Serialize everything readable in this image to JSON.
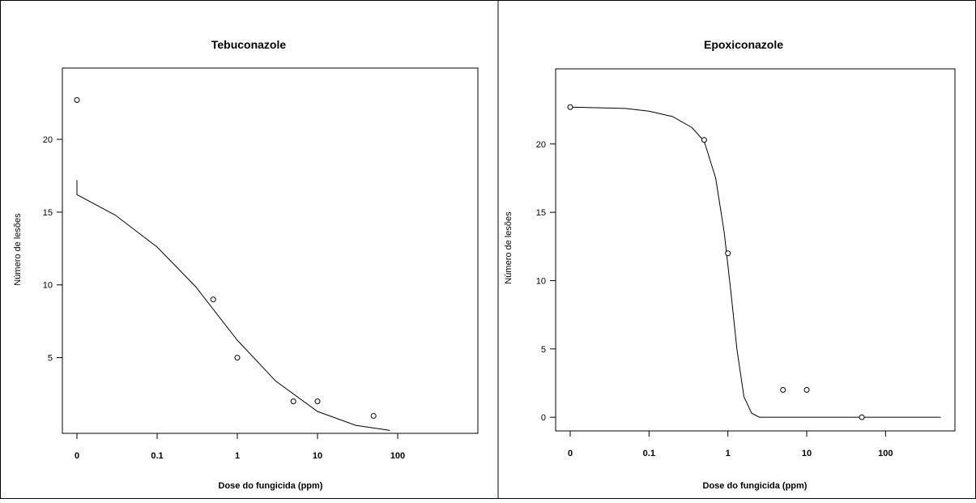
{
  "chart_data": [
    {
      "type": "scatter",
      "title": "Tebuconazole",
      "xlabel": "Dose do fungicida (ppm)",
      "ylabel": "Número de lesões",
      "x_scale": "log",
      "x_ticks": [
        {
          "label": "0",
          "value": 0
        },
        {
          "label": "0.1",
          "value": 0.1
        },
        {
          "label": "1",
          "value": 1
        },
        {
          "label": "10",
          "value": 10
        },
        {
          "label": "100",
          "value": 100
        }
      ],
      "y_ticks": [
        5,
        10,
        15,
        20
      ],
      "ylim": [
        -0.2,
        24.9
      ],
      "grid": false,
      "points": [
        {
          "x": 0,
          "y": 22.7
        },
        {
          "x": 0.5,
          "y": 9
        },
        {
          "x": 1,
          "y": 5
        },
        {
          "x": 5,
          "y": 2
        },
        {
          "x": 10,
          "y": 2
        },
        {
          "x": 50,
          "y": 1
        }
      ],
      "fitted_curve": [
        {
          "x": 0,
          "y": 17.2
        },
        {
          "x": 0.01,
          "y": 16.2
        },
        {
          "x": 0.03,
          "y": 14.8
        },
        {
          "x": 0.1,
          "y": 12.6
        },
        {
          "x": 0.3,
          "y": 9.9
        },
        {
          "x": 1,
          "y": 6.2
        },
        {
          "x": 3,
          "y": 3.4
        },
        {
          "x": 10,
          "y": 1.3
        },
        {
          "x": 30,
          "y": 0.35
        },
        {
          "x": 80,
          "y": 0
        }
      ]
    },
    {
      "type": "scatter",
      "title": "Epoxiconazole",
      "xlabel": "Dose do fungicida (ppm)",
      "ylabel": "Número de lesões",
      "x_scale": "log",
      "x_ticks": [
        {
          "label": "0",
          "value": 0
        },
        {
          "label": "0.1",
          "value": 0.1
        },
        {
          "label": "1",
          "value": 1
        },
        {
          "label": "10",
          "value": 10
        },
        {
          "label": "100",
          "value": 100
        }
      ],
      "y_ticks": [
        0,
        5,
        10,
        15,
        20
      ],
      "ylim": [
        -1.0,
        25.5
      ],
      "grid": false,
      "points": [
        {
          "x": 0,
          "y": 22.7
        },
        {
          "x": 0.5,
          "y": 20.3
        },
        {
          "x": 1,
          "y": 12
        },
        {
          "x": 5,
          "y": 2
        },
        {
          "x": 10,
          "y": 2
        },
        {
          "x": 50,
          "y": 0
        }
      ],
      "fitted_curve": [
        {
          "x": 0,
          "y": 22.7
        },
        {
          "x": 0.01,
          "y": 22.7
        },
        {
          "x": 0.05,
          "y": 22.6
        },
        {
          "x": 0.1,
          "y": 22.4
        },
        {
          "x": 0.2,
          "y": 22.0
        },
        {
          "x": 0.35,
          "y": 21.2
        },
        {
          "x": 0.5,
          "y": 20.2
        },
        {
          "x": 0.7,
          "y": 17.5
        },
        {
          "x": 0.9,
          "y": 13.5
        },
        {
          "x": 1.1,
          "y": 9.0
        },
        {
          "x": 1.3,
          "y": 5.0
        },
        {
          "x": 1.6,
          "y": 1.5
        },
        {
          "x": 2.0,
          "y": 0.3
        },
        {
          "x": 2.5,
          "y": 0
        },
        {
          "x": 500,
          "y": 0
        }
      ]
    }
  ]
}
